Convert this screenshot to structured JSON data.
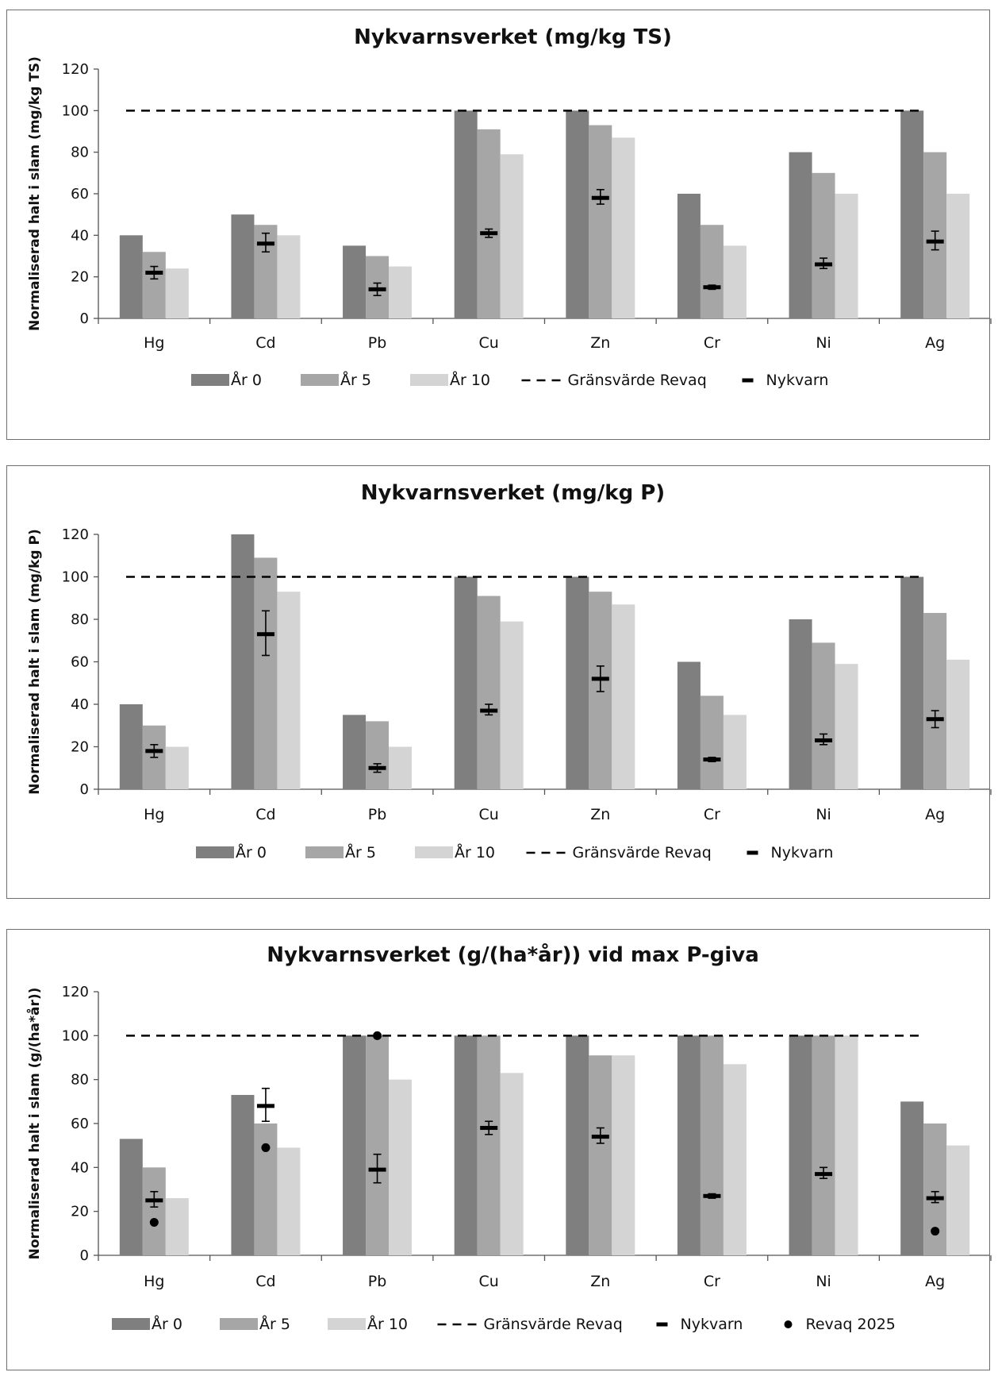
{
  "colors": {
    "ar0": "#7f7f7f",
    "ar5": "#a6a6a6",
    "ar10": "#d4d4d4",
    "limit": "#000000",
    "nykvarn": "#000000",
    "revaq": "#000000"
  },
  "chart_data": [
    {
      "type": "bar",
      "title": "Nykvarnsverket  (mg/kg TS)",
      "ylabel": "Normaliserad halt i slam (mg/kg TS)",
      "xlabel": "",
      "ylim": [
        0,
        120
      ],
      "yticks": [
        "0",
        "20",
        "40",
        "60",
        "80",
        "100",
        "120"
      ],
      "categories": [
        "Hg",
        "Cd",
        "Pb",
        "Cu",
        "Zn",
        "Cr",
        "Ni",
        "Ag"
      ],
      "series": [
        {
          "name": "År 0",
          "values": [
            40,
            50,
            35,
            100,
            100,
            60,
            80,
            100
          ]
        },
        {
          "name": "År 5",
          "values": [
            32,
            45,
            30,
            91,
            93,
            45,
            70,
            80
          ]
        },
        {
          "name": "År 10",
          "values": [
            24,
            40,
            25,
            79,
            87,
            35,
            60,
            60
          ]
        }
      ],
      "limit": {
        "name": "Gränsvärde Revaq",
        "value": 100
      },
      "nykvarn": {
        "name": "Nykvarn",
        "values": [
          22,
          36,
          14,
          41,
          58,
          15,
          26,
          37
        ],
        "low": [
          19,
          32,
          11,
          39,
          55,
          14,
          24,
          33
        ],
        "high": [
          25,
          41,
          17,
          43,
          62,
          16,
          29,
          42
        ]
      },
      "legend": [
        "År 0",
        "År 5",
        "År 10",
        "Gränsvärde Revaq",
        "Nykvarn"
      ],
      "legend_position": "bottom"
    },
    {
      "type": "bar",
      "title": "Nykvarnsverket  (mg/kg P)",
      "ylabel": "Normaliserad halt i slam (mg/kg P)",
      "xlabel": "",
      "ylim": [
        0,
        120
      ],
      "yticks": [
        "0",
        "20",
        "40",
        "60",
        "80",
        "100",
        "120"
      ],
      "categories": [
        "Hg",
        "Cd",
        "Pb",
        "Cu",
        "Zn",
        "Cr",
        "Ni",
        "Ag"
      ],
      "series": [
        {
          "name": "År 0",
          "values": [
            40,
            120,
            35,
            100,
            100,
            60,
            80,
            100
          ]
        },
        {
          "name": "År 5",
          "values": [
            30,
            109,
            32,
            91,
            93,
            44,
            69,
            83
          ]
        },
        {
          "name": "År 10",
          "values": [
            20,
            93,
            20,
            79,
            87,
            35,
            59,
            61
          ]
        }
      ],
      "limit": {
        "name": "Gränsvärde Revaq",
        "value": 100
      },
      "nykvarn": {
        "name": "Nykvarn",
        "values": [
          18,
          73,
          10,
          37,
          52,
          14,
          23,
          33
        ],
        "low": [
          15,
          63,
          8,
          35,
          46,
          13,
          21,
          29
        ],
        "high": [
          21,
          84,
          12,
          40,
          58,
          15,
          26,
          37
        ]
      },
      "legend": [
        "År 0",
        "År 5",
        "År 10",
        "Gränsvärde Revaq",
        "Nykvarn"
      ],
      "legend_position": "bottom"
    },
    {
      "type": "bar",
      "title": "Nykvarnsverket  (g/(ha*år)) vid max P-giva",
      "ylabel": "Normaliserad halt i slam (g/(ha*år))",
      "xlabel": "",
      "ylim": [
        0,
        120
      ],
      "yticks": [
        "0",
        "20",
        "40",
        "60",
        "80",
        "100",
        "120"
      ],
      "categories": [
        "Hg",
        "Cd",
        "Pb",
        "Cu",
        "Zn",
        "Cr",
        "Ni",
        "Ag"
      ],
      "series": [
        {
          "name": "År 0",
          "values": [
            53,
            73,
            100,
            100,
            100,
            100,
            100,
            70
          ]
        },
        {
          "name": "År 5",
          "values": [
            40,
            60,
            100,
            100,
            91,
            100,
            100,
            60
          ]
        },
        {
          "name": "År 10",
          "values": [
            26,
            49,
            80,
            83,
            91,
            87,
            100,
            50
          ]
        }
      ],
      "limit": {
        "name": "Gränsvärde Revaq",
        "value": 100
      },
      "nykvarn": {
        "name": "Nykvarn",
        "values": [
          25,
          68,
          39,
          58,
          54,
          27,
          37,
          26
        ],
        "low": [
          22,
          61,
          33,
          55,
          51,
          26,
          35,
          24
        ],
        "high": [
          29,
          76,
          46,
          61,
          58,
          28,
          40,
          29
        ]
      },
      "revaq2025": {
        "name": "Revaq 2025",
        "values": [
          15,
          49,
          100,
          null,
          null,
          null,
          null,
          11
        ]
      },
      "legend": [
        "År 0",
        "År 5",
        "År 10",
        "Gränsvärde Revaq",
        "Nykvarn",
        "Revaq 2025"
      ],
      "legend_position": "bottom"
    }
  ]
}
